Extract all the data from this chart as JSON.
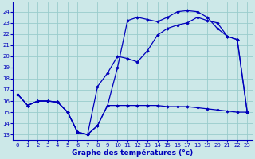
{
  "xlabel": "Graphe des températures (°c)",
  "bg_color": "#cce8e8",
  "grid_color": "#99cccc",
  "line_color": "#0000bb",
  "ylim": [
    12.5,
    24.8
  ],
  "xlim": [
    -0.5,
    23.5
  ],
  "yticks": [
    13,
    14,
    15,
    16,
    17,
    18,
    19,
    20,
    21,
    22,
    23,
    24
  ],
  "xticks": [
    0,
    1,
    2,
    3,
    4,
    5,
    6,
    7,
    8,
    9,
    10,
    11,
    12,
    13,
    14,
    15,
    16,
    17,
    18,
    19,
    20,
    21,
    22,
    23
  ],
  "line1_x": [
    0,
    1,
    2,
    3,
    4,
    5,
    6,
    7,
    8,
    9,
    10,
    11,
    12,
    13,
    14,
    15,
    16,
    17,
    18,
    19,
    20,
    21,
    22,
    23
  ],
  "line1_y": [
    16.6,
    15.6,
    16.0,
    16.0,
    15.9,
    15.0,
    13.2,
    13.0,
    13.8,
    15.6,
    15.6,
    15.6,
    15.6,
    15.6,
    15.6,
    15.5,
    15.5,
    15.5,
    15.4,
    15.3,
    15.2,
    15.1,
    15.0,
    15.0
  ],
  "line2_x": [
    0,
    1,
    2,
    3,
    4,
    5,
    6,
    7,
    8,
    9,
    10,
    11,
    12,
    13,
    14,
    15,
    16,
    17,
    18,
    19,
    20,
    21,
    22,
    23
  ],
  "line2_y": [
    16.6,
    15.6,
    16.0,
    16.0,
    15.9,
    15.0,
    13.2,
    13.0,
    17.3,
    18.5,
    20.0,
    19.8,
    19.5,
    20.5,
    21.9,
    22.5,
    22.8,
    23.0,
    23.5,
    23.2,
    23.0,
    21.8,
    21.5,
    15.0
  ],
  "line3_x": [
    0,
    1,
    2,
    3,
    4,
    5,
    6,
    7,
    8,
    9,
    10,
    11,
    12,
    13,
    14,
    15,
    16,
    17,
    18,
    19,
    20,
    21,
    22,
    23
  ],
  "line3_y": [
    16.6,
    15.6,
    16.0,
    16.0,
    15.9,
    15.0,
    13.2,
    13.0,
    13.8,
    15.6,
    19.0,
    23.2,
    23.5,
    23.3,
    23.1,
    23.5,
    24.0,
    24.1,
    24.0,
    23.5,
    22.5,
    21.8,
    21.5,
    15.0
  ]
}
